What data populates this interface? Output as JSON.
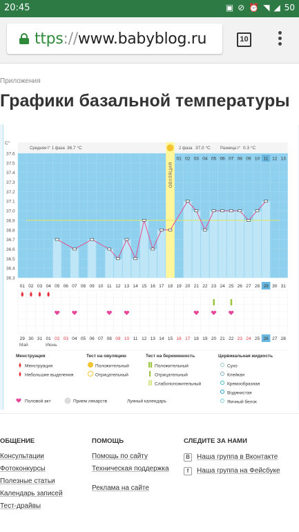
{
  "status_bar": {
    "time": "20:45",
    "battery": "50",
    "icons": [
      "image-icon",
      "signal-off-icon",
      "alarm-icon",
      "wifi-icon",
      "cell-signal-icon"
    ]
  },
  "browser": {
    "url_proto": "ttps",
    "url_sep": "://",
    "url_host": "www.babyblog.ru",
    "tab_count": "10"
  },
  "breadcrumb": "Приложения",
  "page_title": "Графики базальной температуры",
  "chart": {
    "unit": "C°",
    "y_ticks": [
      "37.6",
      "37.5",
      "37.4",
      "37.3",
      "37.2",
      "37.1",
      "37.0",
      "36.9",
      "36.8",
      "36.7",
      "36.6",
      "36.5",
      "36.4",
      "36.3"
    ],
    "phase1_label": "Средняя t° 1 фаза",
    "phase1_value": "36.7 °C",
    "phase2_label": "2 фаза",
    "phase2_value": "37.0 °C",
    "diff_label": "Разница t°",
    "diff_value": "0.3 °C",
    "ovulation_label": "ОВУЛЯЦИЯ",
    "phase2_days": [
      "01",
      "02",
      "03",
      "04",
      "05",
      "06",
      "07",
      "08",
      "09",
      "10",
      "11",
      "12",
      "13"
    ],
    "phase2_highlight": "11",
    "cycle_days": [
      "01",
      "02",
      "03",
      "04",
      "05",
      "06",
      "07",
      "08",
      "09",
      "10",
      "11",
      "12",
      "13",
      "14",
      "15",
      "16",
      "17",
      "18",
      "19",
      "20",
      "21",
      "22",
      "23",
      "24",
      "25",
      "26",
      "27",
      "28",
      "29",
      "30",
      "31"
    ],
    "cycle_highlight": "29",
    "dates": [
      "29",
      "30",
      "31",
      "01",
      "02",
      "03",
      "04",
      "05",
      "06",
      "07",
      "08",
      "09",
      "10",
      "11",
      "12",
      "13",
      "14",
      "15",
      "16",
      "17",
      "18",
      "19",
      "20",
      "21",
      "22",
      "23",
      "24",
      "25",
      "26",
      "27",
      "28"
    ],
    "dates_red": [
      "02",
      "03",
      "09",
      "10",
      "16",
      "17",
      "23",
      "24"
    ],
    "date_highlight": "26",
    "month1": "Май",
    "month2": "Июнь",
    "colors": {
      "bar": "#bfe6f7",
      "bar_line": "#e84c8b",
      "bg": "#8fd0ef",
      "ovulation": "#fff59b",
      "coverline": "#e5e55a",
      "pink": "#e8469a",
      "red": "#e8343c"
    }
  },
  "chart_data": {
    "type": "line",
    "x": [
      1,
      2,
      3,
      4,
      5,
      6,
      7,
      8,
      9,
      10,
      11,
      12,
      13,
      14,
      15,
      16,
      17,
      18,
      19,
      20,
      21,
      22,
      23,
      24,
      25,
      26,
      27,
      28,
      29,
      30,
      31
    ],
    "y": [
      null,
      null,
      null,
      null,
      36.7,
      null,
      36.6,
      null,
      36.7,
      null,
      36.6,
      36.5,
      36.7,
      36.5,
      36.9,
      36.6,
      36.8,
      36.8,
      null,
      37.1,
      37.0,
      36.8,
      37.0,
      37.0,
      37.0,
      37.0,
      36.9,
      37.0,
      37.1,
      null,
      null
    ],
    "ylim": [
      36.3,
      37.6
    ],
    "coverline": 36.9,
    "ovulation_day": 18,
    "menstruation_days": [
      1,
      2,
      3,
      4
    ],
    "intercourse_days": [
      5,
      7,
      11,
      13,
      21,
      23,
      25
    ],
    "test_positive_days": [
      23,
      25
    ]
  },
  "legend": {
    "col1_title": "Менструация",
    "col1_items": [
      "Менструация",
      "Небольшие выделения"
    ],
    "col2_title": "Тест на овуляцию",
    "col2_items": [
      "Положительный",
      "Отрицательный"
    ],
    "col3_title": "Тест на беременность",
    "col3_items": [
      "Положительный",
      "Отрицательный",
      "Слабоположительный"
    ],
    "col4_title": "Цервикальная жидкость",
    "col4_items": [
      "Сухо",
      "Клейкая",
      "Кремообразная",
      "Водянистая",
      "Яичный белок"
    ],
    "bottom_items": [
      "Половой акт",
      "Прием лекарств",
      "Лунный календарь"
    ]
  },
  "footer": {
    "col1_title": "ОБЩЕНИЕ",
    "col1_links": [
      "Консультации",
      "Фотоконкурсы",
      "Полезные статьи",
      "Календарь записей",
      "Тест-драйвы"
    ],
    "col2_title": "ПОМОЩЬ",
    "col2_links": [
      "Помощь по сайту",
      "Техническая поддержка",
      "Реклама на сайте"
    ],
    "col3_title": "СЛЕДИТЕ ЗА НАМИ",
    "col3_links": [
      "Наша группа в Вконтакте",
      "Наша группа на Фейсбуке"
    ],
    "col3_icons": [
      "В",
      "f"
    ]
  }
}
